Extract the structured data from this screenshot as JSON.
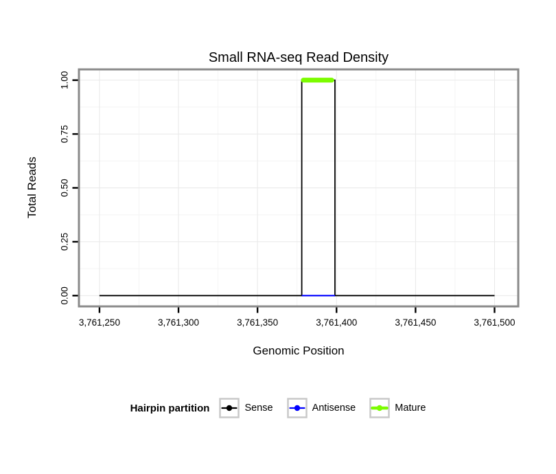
{
  "chart_data": {
    "type": "line",
    "title": "Small RNA-seq Read Density",
    "xlabel": "Genomic Position",
    "ylabel": "Total Reads",
    "xlim": [
      3761237,
      3761515
    ],
    "ylim": [
      -0.05,
      1.05
    ],
    "x_ticks": [
      {
        "value": 3761250,
        "label": "3,761,250"
      },
      {
        "value": 3761300,
        "label": "3,761,300"
      },
      {
        "value": 3761350,
        "label": "3,761,350"
      },
      {
        "value": 3761400,
        "label": "3,761,400"
      },
      {
        "value": 3761450,
        "label": "3,761,450"
      },
      {
        "value": 3761500,
        "label": "3,761,500"
      }
    ],
    "y_ticks": [
      {
        "value": 0,
        "label": "0.00"
      },
      {
        "value": 0.25,
        "label": "0.25"
      },
      {
        "value": 0.5,
        "label": "0.50"
      },
      {
        "value": 0.75,
        "label": "0.75"
      },
      {
        "value": 1,
        "label": "1.00"
      }
    ],
    "grid": {
      "major_color": "#E8E8E8",
      "minor_color": "#F4F4F4",
      "panel_border_color": "#8A8A8A",
      "panel_background": "#FFFFFF"
    },
    "series": [
      {
        "name": "Sense",
        "color": "#000000",
        "width": 1.8,
        "linecap": "butt",
        "points": [
          [
            3761250,
            0
          ],
          [
            3761378,
            0
          ],
          [
            3761378,
            1
          ],
          [
            3761399,
            1
          ],
          [
            3761399,
            0
          ],
          [
            3761500,
            0
          ]
        ]
      },
      {
        "name": "Antisense",
        "color": "#0000FF",
        "width": 2.2,
        "linecap": "butt",
        "points": [
          [
            3761378,
            0
          ],
          [
            3761399,
            0
          ]
        ]
      },
      {
        "name": "Mature",
        "color": "#7CFC00",
        "width": 7,
        "linecap": "round",
        "points": [
          [
            3761379,
            1
          ],
          [
            3761397,
            1
          ]
        ]
      }
    ],
    "legend": {
      "title": "Hairpin partition",
      "position": "bottom",
      "entries": [
        {
          "label": "Sense",
          "color": "#000000",
          "key_line_width": 2.2
        },
        {
          "label": "Antisense",
          "color": "#0000FF",
          "key_line_width": 2.2
        },
        {
          "label": "Mature",
          "color": "#7CFC00",
          "key_line_width": 4.5
        }
      ]
    }
  }
}
